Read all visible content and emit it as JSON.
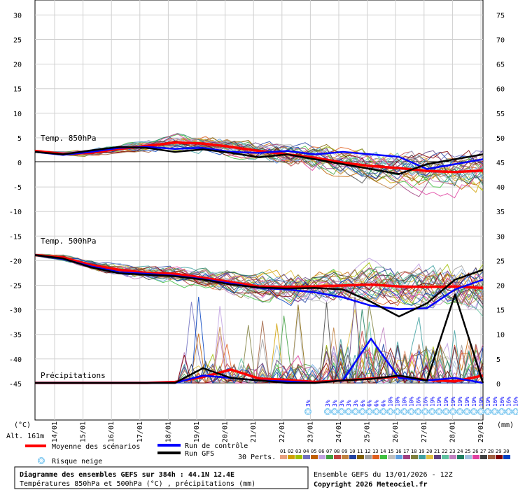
{
  "chart_data": {
    "type": "line",
    "left_axis_unit": "(°C)",
    "right_axis_unit": "(mm)",
    "left_ticks": [
      30,
      25,
      20,
      15,
      10,
      5,
      0,
      -5,
      -10,
      -15,
      -20,
      -25,
      -30,
      -35,
      -40,
      -45
    ],
    "right_ticks": [
      75,
      70,
      65,
      60,
      55,
      50,
      45,
      40,
      35,
      30,
      25,
      20,
      15,
      10,
      5,
      0
    ],
    "ylim": [
      -45,
      30
    ],
    "date_labels": [
      "14/01",
      "15/01",
      "16/01",
      "17/01",
      "18/01",
      "19/01",
      "20/01",
      "21/01",
      "22/01",
      "23/01",
      "24/01",
      "25/01",
      "26/01",
      "27/01",
      "28/01",
      "29/01"
    ],
    "altitude_label": "Alt. 161m",
    "panel_labels": {
      "t850": "Temp. 850hPa",
      "t500": "Temp. 500hPa",
      "precip": "Précipitations"
    },
    "snow_risk": [
      "3%",
      "3%",
      "3%",
      "3%",
      "3%",
      "3%",
      "6%",
      "6%",
      "6%",
      "6%",
      "10%",
      "10%",
      "10%",
      "10%",
      "16%",
      "16%",
      "19%",
      "19%",
      "19%",
      "19%",
      "19%",
      "19%",
      "19%",
      "19%",
      "19%",
      "16%",
      "16%",
      "16%",
      "16%",
      "16%",
      "16%",
      "16%"
    ],
    "legend": {
      "mean": "Moyenne des scénarios",
      "control": "Run de contrôle",
      "gfs": "Run GFS",
      "perts": "30 Perts.",
      "snow": "Risque neige",
      "pert_numbers": [
        "01",
        "02",
        "03",
        "04",
        "05",
        "06",
        "07",
        "08",
        "09",
        "10",
        "11",
        "12",
        "13",
        "14",
        "15",
        "16",
        "17",
        "18",
        "19",
        "20",
        "21",
        "22",
        "23",
        "24",
        "25",
        "26",
        "27",
        "28",
        "29",
        "30"
      ],
      "pert_colors": [
        "#e8a080",
        "#d0a000",
        "#a0c000",
        "#7070c0",
        "#c06000",
        "#c0a0e0",
        "#40a040",
        "#c04040",
        "#c08040",
        "#2040a0",
        "#806000",
        "#a0a0a0",
        "#e06020",
        "#40c040",
        "#c0c0c0",
        "#60a0e0",
        "#a04080",
        "#808040",
        "#40a0a0",
        "#e0c040",
        "#604080",
        "#60c0a0",
        "#c080c0",
        "#208060",
        "#a0c0e0",
        "#e040a0",
        "#404040",
        "#a06040",
        "#800000",
        "#0040c0"
      ]
    },
    "mean_color": "#ff0000",
    "control_color": "#0000ff",
    "gfs_color": "#000000",
    "series": [
      {
        "name": "Moyenne des scénarios",
        "panel": "t850",
        "x": [
          0,
          1,
          2,
          3,
          4,
          5,
          6,
          7,
          8,
          9,
          10,
          11,
          12,
          13,
          14,
          15,
          16
        ],
        "values": [
          2.2,
          1.6,
          1.8,
          2.6,
          3.2,
          3.9,
          3.7,
          3.0,
          2.2,
          1.5,
          0.8,
          -0.2,
          -0.9,
          -1.3,
          -1.9,
          -2.1,
          -1.8
        ]
      },
      {
        "name": "Run de contrôle",
        "panel": "t850",
        "x": [
          0,
          1,
          2,
          3,
          4,
          5,
          6,
          7,
          8,
          9,
          10,
          11,
          12,
          13,
          14,
          15,
          16
        ],
        "values": [
          2.0,
          1.4,
          2.0,
          2.8,
          3.0,
          2.6,
          2.8,
          2.0,
          1.8,
          2.2,
          1.5,
          2.0,
          1.5,
          1.0,
          -1.5,
          -0.5,
          0.5
        ]
      },
      {
        "name": "Run GFS",
        "panel": "t850",
        "x": [
          0,
          1,
          2,
          3,
          4,
          5,
          6,
          7,
          8,
          9,
          10,
          11,
          12,
          13,
          14,
          15,
          16
        ],
        "values": [
          2.0,
          1.5,
          2.3,
          3.0,
          2.8,
          2.0,
          2.5,
          1.8,
          0.9,
          1.5,
          0.5,
          -0.5,
          -1.5,
          -2.5,
          -0.5,
          0.5,
          1.5
        ]
      },
      {
        "name": "Moyenne des scénarios",
        "panel": "t500",
        "x": [
          0,
          1,
          2,
          3,
          4,
          5,
          6,
          7,
          8,
          9,
          10,
          11,
          12,
          13,
          14,
          15,
          16
        ],
        "values": [
          -19.0,
          -19.5,
          -21.0,
          -22.0,
          -22.6,
          -22.8,
          -23.6,
          -24.5,
          -25.4,
          -25.5,
          -25.4,
          -25.2,
          -25.0,
          -25.4,
          -25.5,
          -25.4,
          -25.7
        ]
      },
      {
        "name": "Run de contrôle",
        "panel": "t500",
        "x": [
          0,
          1,
          2,
          3,
          4,
          5,
          6,
          7,
          8,
          9,
          10,
          11,
          12,
          13,
          14,
          15,
          16
        ],
        "values": [
          -19.0,
          -19.8,
          -21.3,
          -22.5,
          -22.8,
          -23.2,
          -23.9,
          -24.8,
          -25.7,
          -26.0,
          -26.6,
          -27.6,
          -29.3,
          -30.0,
          -29.8,
          -26.0,
          -24.0
        ]
      },
      {
        "name": "Run GFS",
        "panel": "t500",
        "x": [
          0,
          1,
          2,
          3,
          4,
          5,
          6,
          7,
          8,
          9,
          10,
          11,
          12,
          13,
          14,
          15,
          16
        ],
        "values": [
          -19.0,
          -19.7,
          -21.5,
          -22.7,
          -23.0,
          -23.3,
          -24.0,
          -25.0,
          -25.6,
          -25.8,
          -25.7,
          -26.0,
          -28.5,
          -31.5,
          -28.8,
          -24.0,
          -22.0
        ]
      },
      {
        "name": "Moyenne des scénarios",
        "panel": "precip",
        "x": [
          0,
          1,
          2,
          3,
          4,
          5,
          6,
          7,
          8,
          9,
          10,
          11,
          12,
          13,
          14,
          15,
          16
        ],
        "values": [
          0,
          0,
          0,
          0,
          0,
          0.2,
          1.2,
          2.7,
          0.9,
          0.6,
          0.2,
          0.5,
          0.9,
          1.3,
          0.6,
          0.3,
          1.5
        ]
      },
      {
        "name": "Run de contrôle",
        "panel": "precip",
        "x": [
          0,
          1,
          2,
          3,
          4,
          5,
          6,
          7,
          8,
          9,
          10,
          11,
          12,
          13,
          14,
          15,
          16
        ],
        "values": [
          0,
          0,
          0,
          0,
          0,
          0,
          1.5,
          1.0,
          0.5,
          0.3,
          0,
          0.5,
          9.0,
          1.0,
          0.5,
          1.0,
          0
        ]
      },
      {
        "name": "Run GFS",
        "panel": "precip",
        "x": [
          0,
          1,
          2,
          3,
          4,
          5,
          6,
          7,
          8,
          9,
          10,
          11,
          12,
          13,
          14,
          15,
          16
        ],
        "values": [
          0,
          0,
          0,
          0,
          0,
          0,
          3.0,
          1.0,
          0.5,
          0,
          0,
          0.5,
          0.8,
          1.5,
          0.5,
          18.0,
          0
        ]
      }
    ],
    "footer": {
      "title": "Diagramme des ensembles GEFS sur 384h : 44.1N 12.4E",
      "subtitle": "Températures 850hPa et 500hPa (°C) , précipitations (mm)",
      "run": "Ensemble GEFS du 13/01/2026 - 12Z",
      "copyright": "Copyright 2026 Meteociel.fr"
    }
  }
}
